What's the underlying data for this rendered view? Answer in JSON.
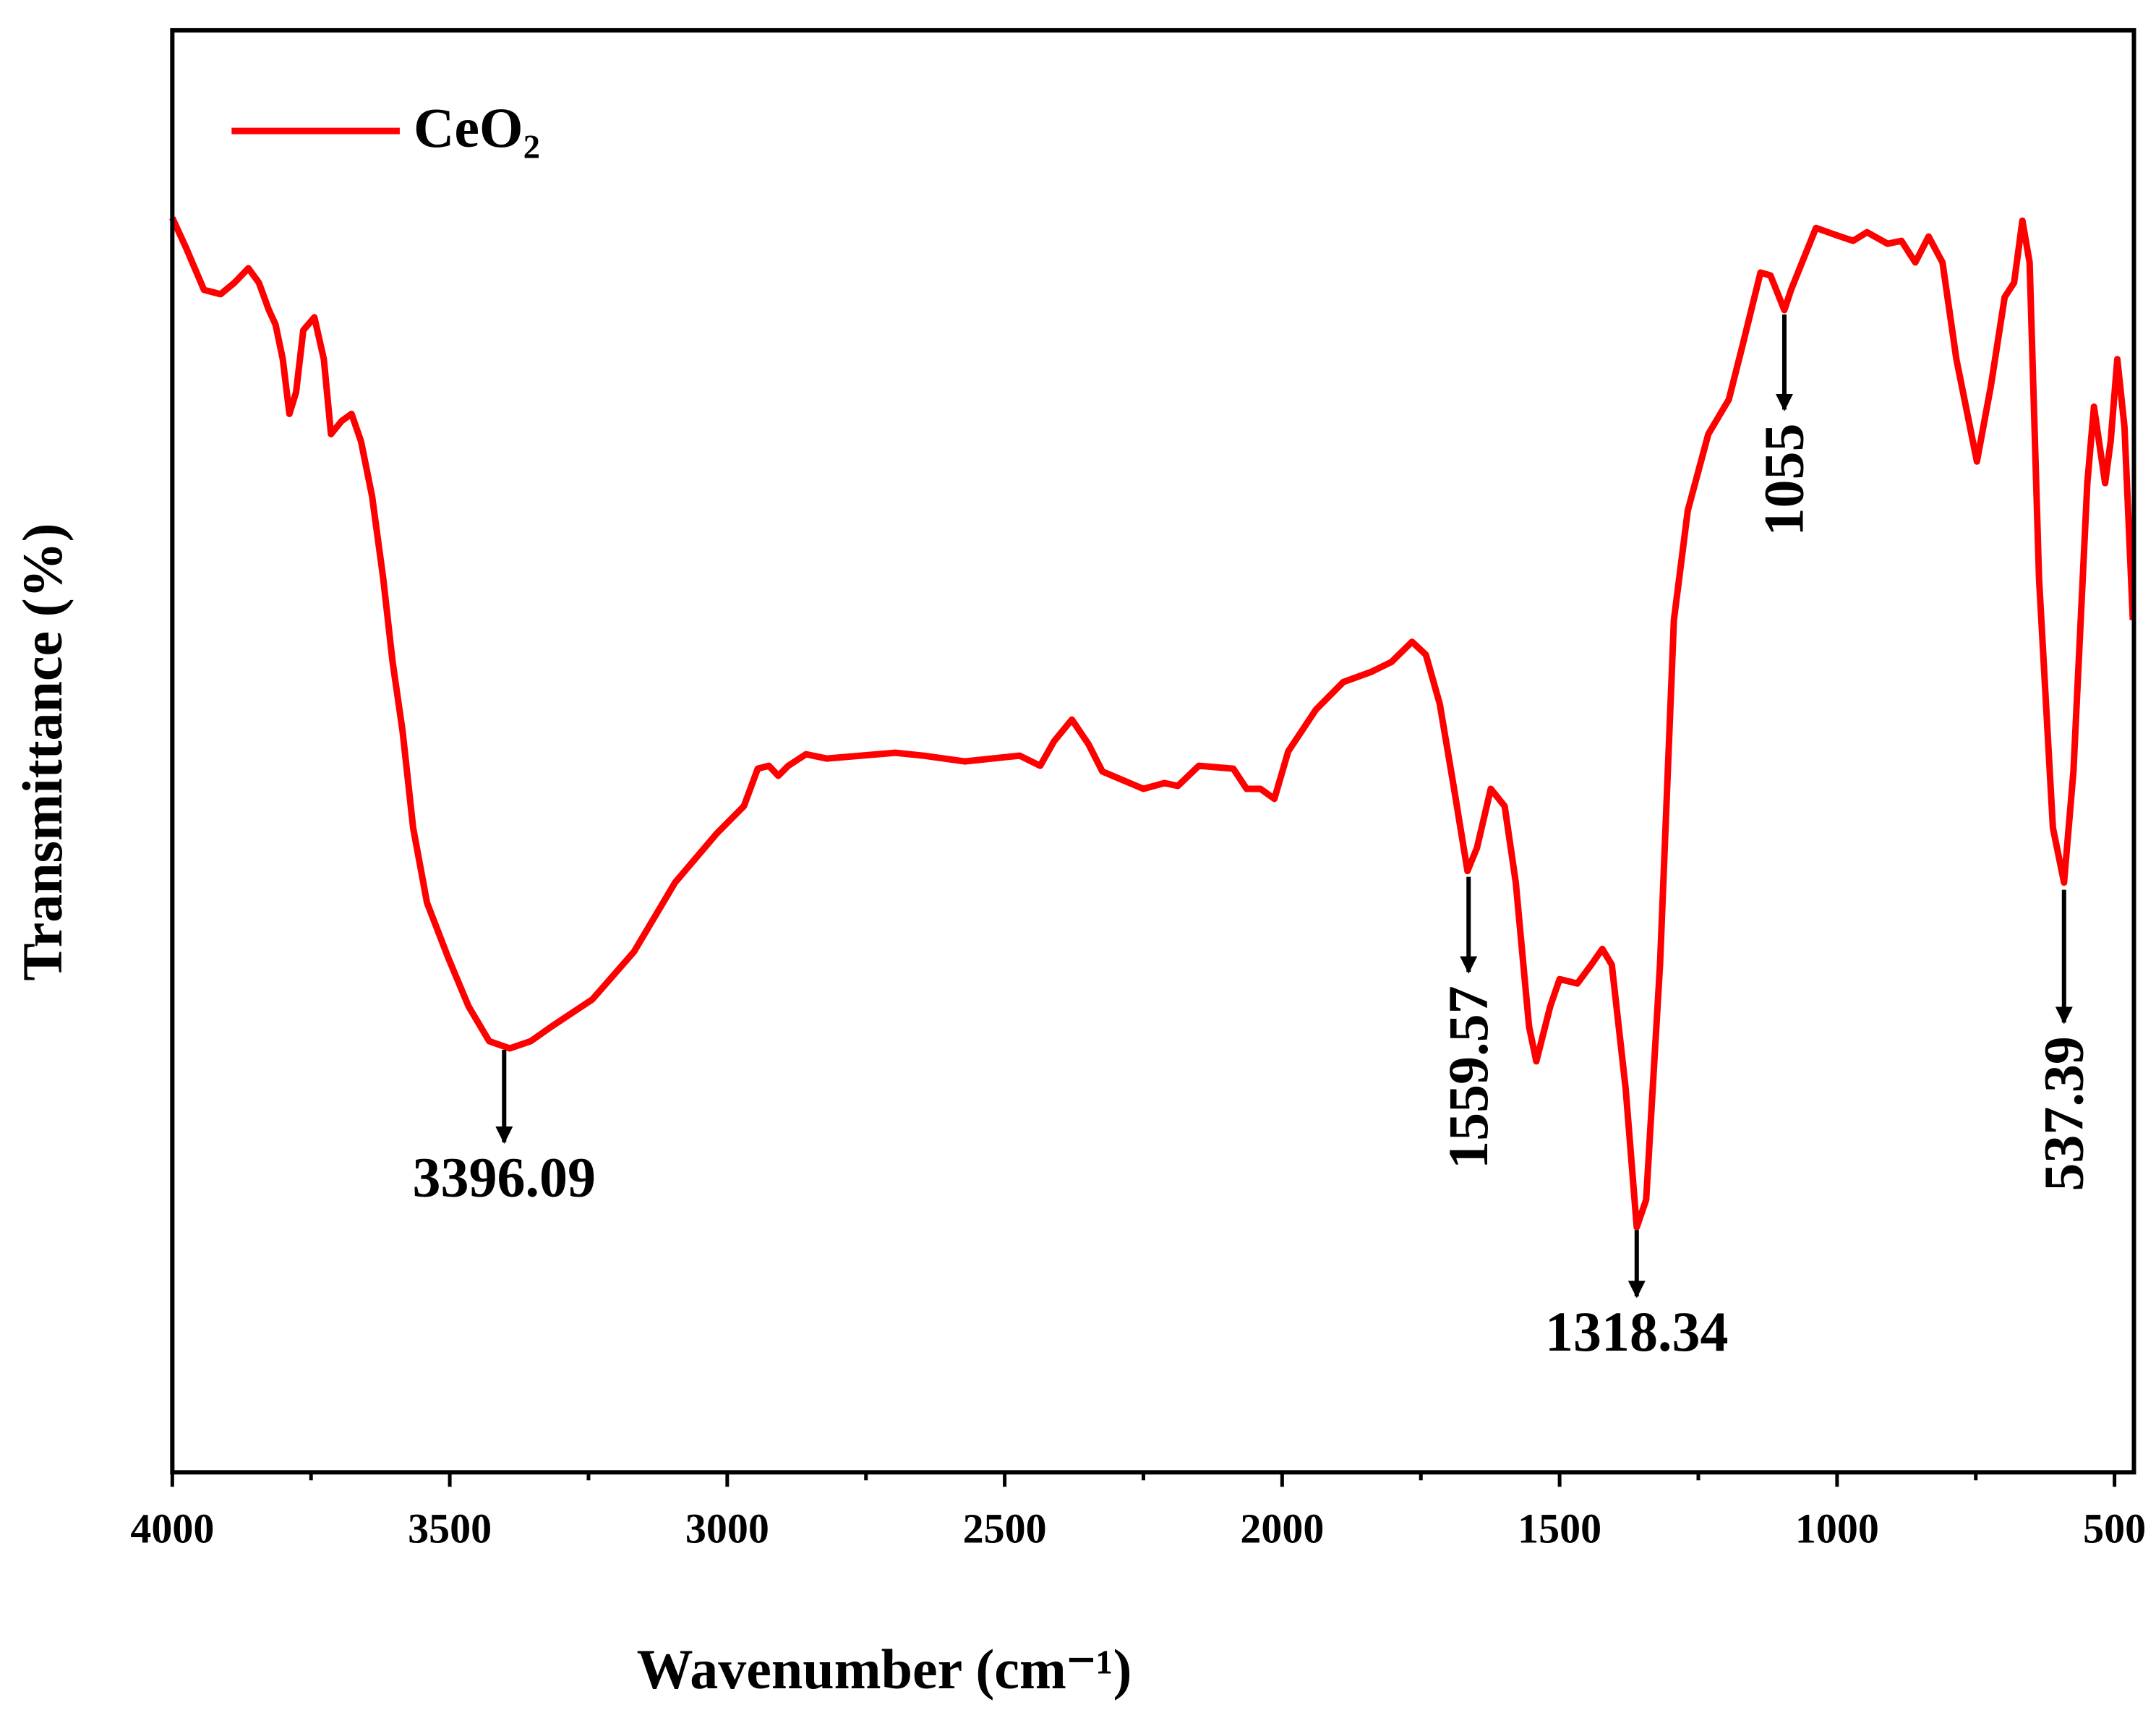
{
  "chart_data": {
    "type": "line",
    "xlabel": "Wavenumber (cm⁻¹)",
    "ylabel": "Transmittance (%)",
    "xlim": [
      4000,
      465
    ],
    "ylim": [
      0,
      100
    ],
    "xticks": [
      4000,
      3500,
      3000,
      2500,
      2000,
      1500,
      1000,
      500
    ],
    "xminor_ticks": [
      3750,
      3250,
      2750,
      2250,
      1750,
      1250,
      750
    ],
    "legend": "upper left",
    "series": [
      {
        "name": "CeO₂",
        "color": "#ff0000",
        "x": [
          4000,
          3975,
          3943,
          3913,
          3888,
          3863,
          3844,
          3826,
          3814,
          3801,
          3789,
          3777,
          3764,
          3744,
          3727,
          3714,
          3695,
          3677,
          3660,
          3640,
          3620,
          3603,
          3585,
          3566,
          3541,
          3503,
          3466,
          3429,
          3392,
          3354,
          3317,
          3243,
          3168,
          3094,
          3019,
          2970,
          2945,
          2925,
          2908,
          2890,
          2858,
          2821,
          2697,
          2647,
          2572,
          2473,
          2436,
          2411,
          2379,
          2349,
          2324,
          2250,
          2212,
          2188,
          2150,
          2088,
          2064,
          2039,
          2014,
          1989,
          1939,
          1890,
          1840,
          1803,
          1766,
          1741,
          1716,
          1691,
          1666,
          1649,
          1624,
          1599,
          1579,
          1555,
          1542,
          1517,
          1500,
          1468,
          1443,
          1423,
          1406,
          1381,
          1361,
          1344,
          1319,
          1294,
          1269,
          1232,
          1195,
          1170,
          1138,
          1120,
          1095,
          1083,
          1038,
          1009,
          971,
          946,
          909,
          884,
          859,
          835,
          810,
          785,
          748,
          723,
          698,
          681,
          666,
          653,
          636,
          611,
          591,
          574,
          549,
          537,
          517,
          507,
          495,
          482,
          467
        ],
        "values": [
          87.0,
          84.9,
          82.0,
          81.7,
          82.5,
          83.5,
          82.5,
          80.6,
          79.6,
          77.2,
          73.4,
          74.9,
          79.2,
          80.1,
          77.2,
          72.0,
          72.9,
          73.4,
          71.5,
          67.7,
          62.0,
          56.2,
          51.4,
          44.7,
          39.5,
          35.7,
          32.3,
          29.9,
          29.4,
          29.9,
          30.9,
          32.8,
          36.1,
          40.9,
          44.3,
          46.2,
          48.8,
          49.0,
          48.3,
          49.0,
          49.8,
          49.5,
          49.9,
          49.7,
          49.3,
          49.7,
          49.0,
          50.7,
          52.2,
          50.5,
          48.6,
          47.4,
          47.8,
          47.6,
          49.0,
          48.8,
          47.4,
          47.4,
          46.7,
          50.0,
          52.9,
          54.8,
          55.5,
          56.2,
          57.6,
          56.7,
          53.3,
          47.6,
          41.7,
          43.3,
          47.4,
          46.2,
          40.9,
          30.9,
          28.5,
          32.3,
          34.2,
          33.9,
          35.2,
          36.3,
          35.2,
          26.6,
          17.0,
          18.9,
          35.2,
          59.1,
          66.7,
          72.0,
          74.4,
          78.2,
          83.2,
          83.0,
          80.6,
          82.0,
          86.3,
          85.9,
          85.4,
          86.0,
          85.2,
          85.4,
          83.9,
          85.7,
          83.9,
          77.2,
          70.1,
          75.3,
          81.5,
          82.5,
          86.8,
          83.9,
          62.0,
          44.7,
          40.9,
          48.6,
          68.6,
          73.9,
          68.6,
          71.5,
          77.2,
          72.5,
          59.1
        ]
      }
    ],
    "annotations": [
      {
        "text": "3396.09",
        "x": 3402,
        "y": [
          29.3,
          22.9
        ],
        "rotated": false
      },
      {
        "text": "1559.57",
        "x": 1664,
        "y": [
          41.3,
          34.7
        ],
        "rotated": true
      },
      {
        "text": "1318.34",
        "x": 1361,
        "y": [
          16.8,
          12.2
        ],
        "rotated": false
      },
      {
        "text": "1055",
        "x": 1095,
        "y": [
          80.3,
          73.7
        ],
        "rotated": true
      },
      {
        "text": "537.39",
        "x": 591,
        "y": [
          40.4,
          31.2
        ],
        "rotated": true
      }
    ]
  }
}
